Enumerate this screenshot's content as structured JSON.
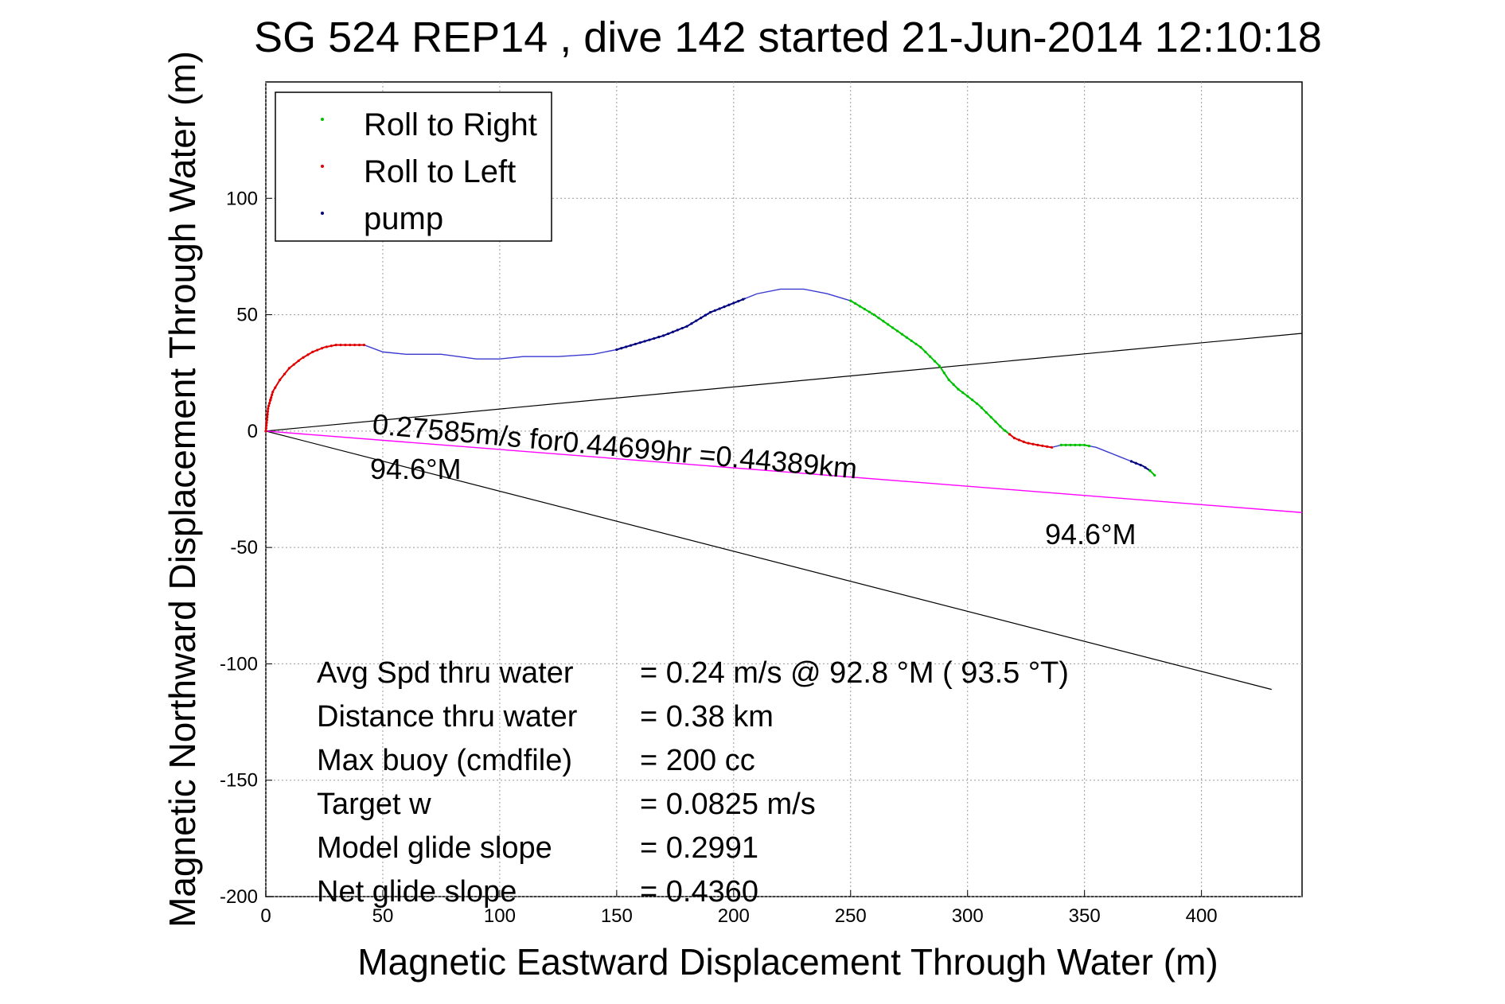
{
  "title": "SG 524   REP14  , dive 142 started 21-Jun-2014 12:10:18",
  "colors": {
    "track": "#3a3ad0",
    "roll_right": "#00c000",
    "roll_left": "#e00000",
    "pump": "#000080",
    "current": "#ff00ff",
    "wedge": "#000000",
    "grid": "#9a9a9a"
  },
  "chart_data": {
    "type": "line",
    "title": "SG 524   REP14  , dive 142 started 21-Jun-2014 12:10:18",
    "xlabel": "Magnetic Eastward Displacement Through Water (m)",
    "ylabel": "Magnetic Northward Displacement Through Water (m)",
    "xlim": [
      0,
      443
    ],
    "ylim": [
      -200,
      150
    ],
    "xticks": [
      0,
      50,
      100,
      150,
      200,
      250,
      300,
      350,
      400
    ],
    "yticks": [
      -200,
      -150,
      -100,
      -50,
      0,
      50,
      100
    ],
    "grid": true,
    "legend_position": "top-left",
    "legend": [
      "Roll to Right",
      "Roll to Left",
      "pump"
    ],
    "track": {
      "x": [
        0,
        1,
        3,
        6,
        10,
        15,
        20,
        25,
        30,
        35,
        42,
        50,
        60,
        75,
        90,
        100,
        110,
        125,
        140,
        150,
        160,
        170,
        180,
        190,
        200,
        210,
        220,
        230,
        240,
        250,
        260,
        270,
        280,
        288,
        292,
        296,
        300,
        305,
        310,
        315,
        320,
        325,
        330,
        336,
        340,
        345,
        350,
        355,
        360,
        365,
        370,
        375,
        378,
        380
      ],
      "y": [
        0,
        10,
        17,
        22,
        27,
        31,
        34,
        36,
        37,
        37,
        37,
        34,
        33,
        33,
        31,
        31,
        32,
        32,
        33,
        35,
        38,
        41,
        45,
        51,
        55,
        59,
        61,
        61,
        59,
        56,
        50,
        43,
        36,
        28,
        22,
        18,
        15,
        11,
        6,
        1,
        -3,
        -5,
        -6,
        -7,
        -6,
        -6,
        -6,
        -7,
        -9,
        -11,
        -13,
        -15,
        -17,
        -19
      ],
      "segments": [
        {
          "name": "Roll to Left",
          "x_range": [
            0,
            42
          ]
        },
        {
          "name": "pump",
          "x_range": [
            150,
            205
          ]
        },
        {
          "name": "Roll to Right",
          "x_range": [
            250,
            318
          ]
        },
        {
          "name": "Roll to Left",
          "x_range": [
            318,
            336
          ]
        },
        {
          "name": "Roll to Right",
          "x_range": [
            340,
            352
          ]
        },
        {
          "name": "pump",
          "x_range": [
            370,
            378
          ]
        },
        {
          "name": "Roll to Right",
          "x_range": [
            378,
            380
          ]
        }
      ]
    },
    "current_line": {
      "heading": "94.6°M",
      "x": [
        0,
        443
      ],
      "y": [
        0,
        -35
      ]
    },
    "wedge_lines": [
      {
        "x": [
          0,
          443
        ],
        "y": [
          0,
          42
        ]
      },
      {
        "x": [
          0,
          430
        ],
        "y": [
          0,
          -111
        ]
      }
    ],
    "annotations": {
      "current_text": "0.27585m/s for0.44699hr =0.44389km",
      "heading_label_1": "94.6°M",
      "heading_label_2": "94.6°M"
    },
    "stats": [
      {
        "label": "Avg Spd thru water",
        "value": "=  0.24 m/s @  92.8 °M ( 93.5 °T)"
      },
      {
        "label": "Distance thru water",
        "value": "=  0.38 km"
      },
      {
        "label": "Max buoy (cmdfile)",
        "value": "= 200 cc"
      },
      {
        "label": "Target w",
        "value": "= 0.0825 m/s"
      },
      {
        "label": "Model glide slope",
        "value": "= 0.2991"
      },
      {
        "label": "Net glide slope",
        "value": "= 0.4360"
      }
    ]
  }
}
